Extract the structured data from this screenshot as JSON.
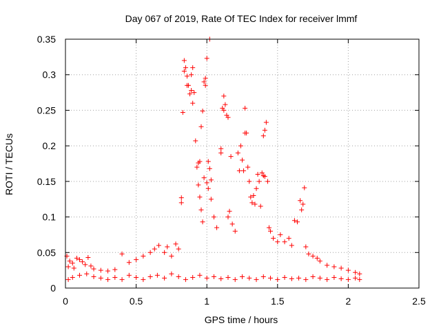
{
  "chart_data": {
    "type": "scatter",
    "title": "Day 067 of 2019, Rate Of TEC Index for receiver lmmf",
    "xlabel": "GPS time / hours",
    "ylabel": "ROTI / TECUs",
    "xlim": [
      0,
      2.5
    ],
    "ylim": [
      0,
      0.35
    ],
    "xticks": [
      {
        "v": 0,
        "label": "0"
      },
      {
        "v": 0.5,
        "label": "0.5"
      },
      {
        "v": 1,
        "label": "1"
      },
      {
        "v": 1.5,
        "label": "1.5"
      },
      {
        "v": 2,
        "label": "2"
      },
      {
        "v": 2.5,
        "label": "2.5"
      }
    ],
    "yticks": [
      {
        "v": 0,
        "label": "0"
      },
      {
        "v": 0.05,
        "label": "0.05"
      },
      {
        "v": 0.1,
        "label": "0.1"
      },
      {
        "v": 0.15,
        "label": "0.15"
      },
      {
        "v": 0.2,
        "label": "0.2"
      },
      {
        "v": 0.25,
        "label": "0.25"
      },
      {
        "v": 0.3,
        "label": "0.3"
      },
      {
        "v": 0.35,
        "label": "0.35"
      }
    ],
    "grid": true,
    "marker": "+",
    "color": "#ff0000",
    "series": [
      {
        "name": "ROTI",
        "points": [
          [
            0.01,
            0.045
          ],
          [
            0.02,
            0.03
          ],
          [
            0.03,
            0.038
          ],
          [
            0.05,
            0.035
          ],
          [
            0.06,
            0.028
          ],
          [
            0.08,
            0.042
          ],
          [
            0.1,
            0.04
          ],
          [
            0.12,
            0.037
          ],
          [
            0.14,
            0.033
          ],
          [
            0.16,
            0.043
          ],
          [
            0.18,
            0.031
          ],
          [
            0.2,
            0.027
          ],
          [
            0.25,
            0.025
          ],
          [
            0.3,
            0.024
          ],
          [
            0.35,
            0.026
          ],
          [
            0.4,
            0.048
          ],
          [
            0.45,
            0.036
          ],
          [
            0.5,
            0.04
          ],
          [
            0.55,
            0.045
          ],
          [
            0.6,
            0.05
          ],
          [
            0.63,
            0.055
          ],
          [
            0.66,
            0.06
          ],
          [
            0.7,
            0.05
          ],
          [
            0.72,
            0.058
          ],
          [
            0.75,
            0.045
          ],
          [
            0.78,
            0.062
          ],
          [
            0.8,
            0.055
          ],
          [
            0.82,
            0.12
          ],
          [
            0.82,
            0.127
          ],
          [
            0.83,
            0.247
          ],
          [
            0.84,
            0.32
          ],
          [
            0.84,
            0.305
          ],
          [
            0.85,
            0.31
          ],
          [
            0.86,
            0.298
          ],
          [
            0.86,
            0.285
          ],
          [
            0.87,
            0.285
          ],
          [
            0.88,
            0.273
          ],
          [
            0.89,
            0.3
          ],
          [
            0.89,
            0.278
          ],
          [
            0.9,
            0.31
          ],
          [
            0.9,
            0.26
          ],
          [
            0.91,
            0.275
          ],
          [
            0.92,
            0.207
          ],
          [
            0.93,
            0.17
          ],
          [
            0.94,
            0.176
          ],
          [
            0.94,
            0.145
          ],
          [
            0.95,
            0.178
          ],
          [
            0.95,
            0.128
          ],
          [
            0.96,
            0.227
          ],
          [
            0.96,
            0.11
          ],
          [
            0.97,
            0.249
          ],
          [
            0.97,
            0.093
          ],
          [
            0.98,
            0.29
          ],
          [
            0.98,
            0.155
          ],
          [
            0.99,
            0.295
          ],
          [
            0.99,
            0.285
          ],
          [
            1.0,
            0.323
          ],
          [
            1.0,
            0.148
          ],
          [
            1.01,
            0.178
          ],
          [
            1.01,
            0.14
          ],
          [
            1.02,
            0.35
          ],
          [
            1.02,
            0.168
          ],
          [
            1.03,
            0.152
          ],
          [
            1.03,
            0.125
          ],
          [
            1.05,
            0.1
          ],
          [
            1.07,
            0.085
          ],
          [
            1.1,
            0.19
          ],
          [
            1.1,
            0.196
          ],
          [
            1.11,
            0.253
          ],
          [
            1.12,
            0.27
          ],
          [
            1.12,
            0.25
          ],
          [
            1.13,
            0.258
          ],
          [
            1.14,
            0.243
          ],
          [
            1.15,
            0.24
          ],
          [
            1.15,
            0.1
          ],
          [
            1.16,
            0.108
          ],
          [
            1.17,
            0.185
          ],
          [
            1.18,
            0.09
          ],
          [
            1.2,
            0.08
          ],
          [
            1.22,
            0.19
          ],
          [
            1.23,
            0.165
          ],
          [
            1.24,
            0.2
          ],
          [
            1.25,
            0.18
          ],
          [
            1.26,
            0.165
          ],
          [
            1.27,
            0.218
          ],
          [
            1.27,
            0.253
          ],
          [
            1.28,
            0.218
          ],
          [
            1.29,
            0.17
          ],
          [
            1.3,
            0.15
          ],
          [
            1.31,
            0.128
          ],
          [
            1.32,
            0.12
          ],
          [
            1.33,
            0.13
          ],
          [
            1.34,
            0.118
          ],
          [
            1.35,
            0.14
          ],
          [
            1.36,
            0.16
          ],
          [
            1.37,
            0.15
          ],
          [
            1.38,
            0.115
          ],
          [
            1.39,
            0.162
          ],
          [
            1.4,
            0.214
          ],
          [
            1.4,
            0.158
          ],
          [
            1.41,
            0.222
          ],
          [
            1.41,
            0.157
          ],
          [
            1.42,
            0.233
          ],
          [
            1.43,
            0.15
          ],
          [
            1.44,
            0.085
          ],
          [
            1.45,
            0.08
          ],
          [
            1.47,
            0.07
          ],
          [
            1.5,
            0.065
          ],
          [
            1.52,
            0.075
          ],
          [
            1.55,
            0.065
          ],
          [
            1.58,
            0.07
          ],
          [
            1.6,
            0.06
          ],
          [
            1.62,
            0.095
          ],
          [
            1.64,
            0.093
          ],
          [
            1.66,
            0.123
          ],
          [
            1.67,
            0.11
          ],
          [
            1.68,
            0.118
          ],
          [
            1.69,
            0.141
          ],
          [
            1.7,
            0.058
          ],
          [
            1.72,
            0.048
          ],
          [
            1.75,
            0.045
          ],
          [
            1.78,
            0.042
          ],
          [
            1.8,
            0.038
          ],
          [
            1.85,
            0.032
          ],
          [
            1.9,
            0.03
          ],
          [
            1.95,
            0.028
          ],
          [
            2.0,
            0.025
          ],
          [
            2.05,
            0.022
          ],
          [
            2.08,
            0.02
          ],
          [
            0.02,
            0.012
          ],
          [
            0.05,
            0.015
          ],
          [
            0.1,
            0.018
          ],
          [
            0.15,
            0.02
          ],
          [
            0.2,
            0.016
          ],
          [
            0.25,
            0.014
          ],
          [
            0.3,
            0.012
          ],
          [
            0.35,
            0.015
          ],
          [
            0.4,
            0.012
          ],
          [
            0.45,
            0.018
          ],
          [
            0.5,
            0.015
          ],
          [
            0.55,
            0.012
          ],
          [
            0.6,
            0.016
          ],
          [
            0.65,
            0.018
          ],
          [
            0.7,
            0.014
          ],
          [
            0.75,
            0.02
          ],
          [
            0.8,
            0.016
          ],
          [
            0.85,
            0.012
          ],
          [
            0.9,
            0.015
          ],
          [
            0.95,
            0.018
          ],
          [
            1.0,
            0.014
          ],
          [
            1.05,
            0.016
          ],
          [
            1.1,
            0.013
          ],
          [
            1.15,
            0.015
          ],
          [
            1.2,
            0.012
          ],
          [
            1.25,
            0.016
          ],
          [
            1.3,
            0.014
          ],
          [
            1.35,
            0.012
          ],
          [
            1.4,
            0.016
          ],
          [
            1.45,
            0.014
          ],
          [
            1.5,
            0.012
          ],
          [
            1.55,
            0.015
          ],
          [
            1.6,
            0.013
          ],
          [
            1.65,
            0.014
          ],
          [
            1.7,
            0.012
          ],
          [
            1.75,
            0.016
          ],
          [
            1.8,
            0.014
          ],
          [
            1.85,
            0.012
          ],
          [
            1.9,
            0.015
          ],
          [
            1.95,
            0.013
          ],
          [
            2.0,
            0.012
          ],
          [
            2.05,
            0.014
          ],
          [
            2.08,
            0.012
          ]
        ]
      }
    ]
  }
}
